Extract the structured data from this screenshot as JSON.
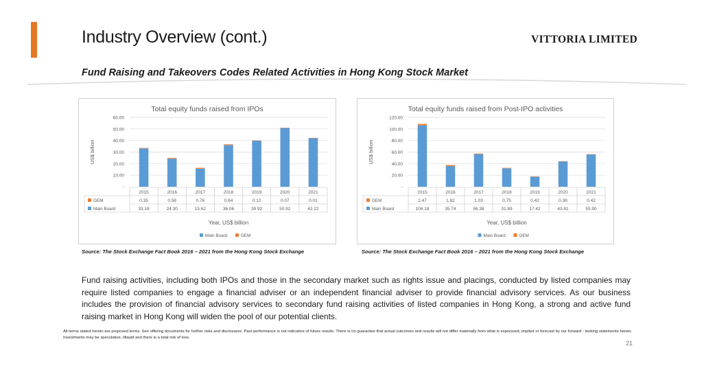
{
  "slide": {
    "title": "Industry Overview (cont.)",
    "company": "VITTORIA LIMITED",
    "subtitle": "Fund Raising and Takeovers Codes Related Activities in Hong Kong Stock Market",
    "accent_color": "#e87722",
    "body": "Fund raising activities, including both IPOs and those in the secondary market such as rights issue and placings, conducted by listed companies may require listed companies to engage a financial adviser or an independent financial adviser to provide financial advisory services. As our business includes the provision of financial advisory services to secondary fund raising activities of listed companies in Hong Kong, a strong and active fund raising market in Hong Kong will widen the pool of our potential clients.",
    "disclaimer": "All terms stated herein are proposed terms. See offering documents for further risks and disclosures. Past performance is not indicative of future results. There is no guarantee that actual outcomes and results will not differ materially from what is expressed, implied or forecast by our forward - looking statements herein. Investments may be speculative, illiquid and there is a total risk of loss.",
    "page_number": "21",
    "source_left": "Source: The Stock Exchange Fact Book 2016 – 2021 from the Hong Kong Stock Exchange",
    "source_right": "Source: The Stock Exchange Fact Book 2016 – 2021 from the Hong Kong Stock Exchange"
  },
  "chart_data": [
    {
      "type": "bar",
      "stacked": true,
      "title": "Total equity funds raised from IPOs",
      "xlabel": "Year, US$ billion",
      "ylabel": "US$ billion",
      "categories": [
        "2015",
        "2016",
        "2017",
        "2018",
        "2019",
        "2020",
        "2021"
      ],
      "ylim": [
        0,
        60
      ],
      "yticks": [
        "-",
        "10.00",
        "20.00",
        "30.00",
        "40.00",
        "50.00",
        "60.00"
      ],
      "legend_position": "bottom",
      "grid": true,
      "series": [
        {
          "name": "Main Board",
          "color": "#5b9bd5",
          "values": [
            33.18,
            24.3,
            15.62,
            36.06,
            39.92,
            50.92,
            42.22
          ],
          "labels": [
            "33.18",
            "24.30",
            "15.62",
            "36.06",
            "39.92",
            "50.92",
            "42.22"
          ]
        },
        {
          "name": "GEM",
          "color": "#ed7d31",
          "values": [
            0.35,
            0.58,
            0.76,
            0.64,
            0.12,
            0.07,
            0.01
          ],
          "labels": [
            "0.35",
            "0.58",
            "0.76",
            "0.64",
            "0.12",
            "0.07",
            "0.01"
          ]
        }
      ],
      "table_rows": [
        "GEM",
        "Main Board"
      ],
      "legend": [
        "Main Board",
        "GEM"
      ]
    },
    {
      "type": "bar",
      "stacked": true,
      "title": "Total equity funds raised from Post-IPO activities",
      "xlabel": "Year, US$ billion",
      "ylabel": "US$ billion",
      "categories": [
        "2015",
        "2016",
        "2017",
        "2018",
        "2019",
        "2020",
        "2021"
      ],
      "ylim": [
        0,
        120
      ],
      "yticks": [
        "-",
        "20.00",
        "40.00",
        "60.00",
        "80.00",
        "100.00",
        "120.00"
      ],
      "legend_position": "bottom",
      "grid": true,
      "series": [
        {
          "name": "Main Board",
          "color": "#5b9bd5",
          "values": [
            106.18,
            35.74,
            56.38,
            31.89,
            17.42,
            43.81,
            55.9
          ],
          "labels": [
            "106.18",
            "35.74",
            "56.38",
            "31.89",
            "17.42",
            "43.81",
            "55.90"
          ]
        },
        {
          "name": "GEM",
          "color": "#ed7d31",
          "values": [
            2.47,
            1.82,
            1.03,
            0.75,
            0.42,
            0.38,
            0.42
          ],
          "labels": [
            "2.47",
            "1.82",
            "1.03",
            "0.75",
            "0.42",
            "0.38",
            "0.42"
          ]
        }
      ],
      "table_rows": [
        "GEM",
        "Main Board"
      ],
      "legend": [
        "Main Board",
        "GEM"
      ]
    }
  ]
}
